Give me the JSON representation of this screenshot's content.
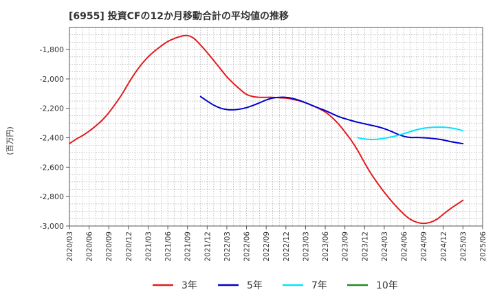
{
  "chart_data": {
    "type": "line",
    "title": "[6955]  投資CFの12か月移動合計の平均値の推移",
    "ylabel": "(百万円)",
    "xlabel": "",
    "ylim": [
      -3000,
      -1650
    ],
    "yticks": [
      -1800,
      -2000,
      -2200,
      -2400,
      -2600,
      -2800,
      -3000
    ],
    "ytick_labels": [
      "-1,800",
      "-2,000",
      "-2,200",
      "-2,400",
      "-2,600",
      "-2,800",
      "-3,000"
    ],
    "x_tick_labels": [
      "2020/03",
      "2020/06",
      "2020/09",
      "2020/12",
      "2021/03",
      "2021/06",
      "2021/09",
      "2021/12",
      "2022/03",
      "2022/06",
      "2022/09",
      "2022/12",
      "2023/03",
      "2023/06",
      "2023/09",
      "2023/12",
      "2024/03",
      "2024/06",
      "2024/09",
      "2024/12",
      "2025/03",
      "2025/06"
    ],
    "grid": true,
    "legend_position": "bottom",
    "series": [
      {
        "name": "3年",
        "color": "#e41a1c",
        "points": [
          [
            "2020/03",
            -2440
          ],
          [
            "2020/04",
            -2410
          ],
          [
            "2020/05",
            -2385
          ],
          [
            "2020/06",
            -2355
          ],
          [
            "2020/07",
            -2320
          ],
          [
            "2020/08",
            -2280
          ],
          [
            "2020/09",
            -2230
          ],
          [
            "2020/10",
            -2170
          ],
          [
            "2020/11",
            -2105
          ],
          [
            "2020/12",
            -2030
          ],
          [
            "2021/01",
            -1960
          ],
          [
            "2021/02",
            -1900
          ],
          [
            "2021/03",
            -1850
          ],
          [
            "2021/04",
            -1810
          ],
          [
            "2021/05",
            -1775
          ],
          [
            "2021/06",
            -1745
          ],
          [
            "2021/07",
            -1725
          ],
          [
            "2021/08",
            -1710
          ],
          [
            "2021/09",
            -1705
          ],
          [
            "2021/10",
            -1725
          ],
          [
            "2021/11",
            -1770
          ],
          [
            "2021/12",
            -1820
          ],
          [
            "2022/01",
            -1875
          ],
          [
            "2022/02",
            -1930
          ],
          [
            "2022/03",
            -1985
          ],
          [
            "2022/04",
            -2030
          ],
          [
            "2022/05",
            -2070
          ],
          [
            "2022/06",
            -2105
          ],
          [
            "2022/07",
            -2120
          ],
          [
            "2022/08",
            -2125
          ],
          [
            "2022/09",
            -2125
          ],
          [
            "2022/10",
            -2125
          ],
          [
            "2022/11",
            -2128
          ],
          [
            "2022/12",
            -2130
          ],
          [
            "2023/01",
            -2138
          ],
          [
            "2023/02",
            -2148
          ],
          [
            "2023/03",
            -2162
          ],
          [
            "2023/04",
            -2180
          ],
          [
            "2023/05",
            -2200
          ],
          [
            "2023/06",
            -2225
          ],
          [
            "2023/07",
            -2260
          ],
          [
            "2023/08",
            -2305
          ],
          [
            "2023/09",
            -2360
          ],
          [
            "2023/10",
            -2420
          ],
          [
            "2023/11",
            -2490
          ],
          [
            "2023/12",
            -2570
          ],
          [
            "2024/01",
            -2645
          ],
          [
            "2024/02",
            -2710
          ],
          [
            "2024/03",
            -2770
          ],
          [
            "2024/04",
            -2825
          ],
          [
            "2024/05",
            -2875
          ],
          [
            "2024/06",
            -2920
          ],
          [
            "2024/07",
            -2955
          ],
          [
            "2024/08",
            -2975
          ],
          [
            "2024/09",
            -2982
          ],
          [
            "2024/10",
            -2975
          ],
          [
            "2024/11",
            -2955
          ],
          [
            "2024/12",
            -2920
          ],
          [
            "2025/01",
            -2885
          ],
          [
            "2025/02",
            -2855
          ],
          [
            "2025/03",
            -2825
          ]
        ]
      },
      {
        "name": "5年",
        "color": "#0000cc",
        "points": [
          [
            "2021/11",
            -2120
          ],
          [
            "2021/12",
            -2150
          ],
          [
            "2022/01",
            -2178
          ],
          [
            "2022/02",
            -2198
          ],
          [
            "2022/03",
            -2208
          ],
          [
            "2022/04",
            -2210
          ],
          [
            "2022/05",
            -2205
          ],
          [
            "2022/06",
            -2195
          ],
          [
            "2022/07",
            -2180
          ],
          [
            "2022/08",
            -2162
          ],
          [
            "2022/09",
            -2143
          ],
          [
            "2022/10",
            -2130
          ],
          [
            "2022/11",
            -2125
          ],
          [
            "2022/12",
            -2125
          ],
          [
            "2023/01",
            -2132
          ],
          [
            "2023/02",
            -2145
          ],
          [
            "2023/03",
            -2162
          ],
          [
            "2023/04",
            -2180
          ],
          [
            "2023/05",
            -2198
          ],
          [
            "2023/06",
            -2215
          ],
          [
            "2023/07",
            -2235
          ],
          [
            "2023/08",
            -2255
          ],
          [
            "2023/09",
            -2270
          ],
          [
            "2023/10",
            -2283
          ],
          [
            "2023/11",
            -2295
          ],
          [
            "2023/12",
            -2305
          ],
          [
            "2024/01",
            -2315
          ],
          [
            "2024/02",
            -2325
          ],
          [
            "2024/03",
            -2338
          ],
          [
            "2024/04",
            -2355
          ],
          [
            "2024/05",
            -2375
          ],
          [
            "2024/06",
            -2390
          ],
          [
            "2024/07",
            -2398
          ],
          [
            "2024/08",
            -2398
          ],
          [
            "2024/09",
            -2400
          ],
          [
            "2024/10",
            -2403
          ],
          [
            "2024/11",
            -2408
          ],
          [
            "2024/12",
            -2415
          ],
          [
            "2025/01",
            -2425
          ],
          [
            "2025/02",
            -2433
          ],
          [
            "2025/03",
            -2440
          ]
        ]
      },
      {
        "name": "7年",
        "color": "#00e5ff",
        "points": [
          [
            "2023/11",
            -2400
          ],
          [
            "2023/12",
            -2408
          ],
          [
            "2024/01",
            -2412
          ],
          [
            "2024/02",
            -2410
          ],
          [
            "2024/03",
            -2403
          ],
          [
            "2024/04",
            -2395
          ],
          [
            "2024/05",
            -2385
          ],
          [
            "2024/06",
            -2372
          ],
          [
            "2024/07",
            -2358
          ],
          [
            "2024/08",
            -2345
          ],
          [
            "2024/09",
            -2335
          ],
          [
            "2024/10",
            -2330
          ],
          [
            "2024/11",
            -2328
          ],
          [
            "2024/12",
            -2328
          ],
          [
            "2025/01",
            -2332
          ],
          [
            "2025/02",
            -2340
          ],
          [
            "2025/03",
            -2352
          ]
        ]
      },
      {
        "name": "10年",
        "color": "#228b22",
        "points": []
      }
    ]
  }
}
